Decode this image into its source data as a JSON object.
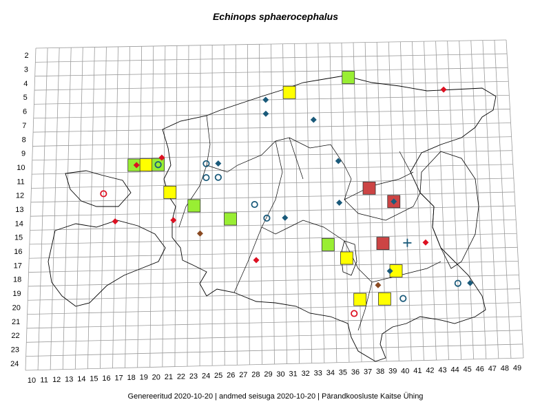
{
  "title": "Echinops sphaerocephalus",
  "footer": "Genereeritud 2020-10-20  |  andmed seisuga 2020-10-20  |  Pärandkoosluste Kaitse Ühing",
  "grid": {
    "rows": [
      "2",
      "3",
      "4",
      "5",
      "6",
      "7",
      "8",
      "9",
      "10",
      "11",
      "12",
      "13",
      "14",
      "15",
      "16",
      "17",
      "18",
      "19",
      "20",
      "21",
      "22",
      "23",
      "24"
    ],
    "cols": [
      "10",
      "11",
      "12",
      "13",
      "14",
      "15",
      "16",
      "17",
      "18",
      "19",
      "20",
      "21",
      "22",
      "23",
      "24",
      "25",
      "26",
      "27",
      "28",
      "29",
      "30",
      "31",
      "32",
      "33",
      "34",
      "35",
      "36",
      "37",
      "38",
      "39",
      "40",
      "41",
      "42",
      "43",
      "44",
      "45",
      "46",
      "47",
      "48",
      "49"
    ]
  },
  "colors": {
    "grid_line": "#9a9a9a",
    "border": "#000000",
    "yellow_square": "#ffff00",
    "green_square": "#99ee33",
    "red_square": "#cc4444",
    "red_marker": "#dd1122",
    "blue_marker": "#1a5a7a",
    "brown_marker": "#8a4a22"
  },
  "markers": [
    {
      "type": "square",
      "color": "green",
      "col": 18.0,
      "row": 10.0
    },
    {
      "type": "square",
      "color": "yellow",
      "col": 19.0,
      "row": 10.0
    },
    {
      "type": "square",
      "color": "green",
      "col": 20.0,
      "row": 10.0
    },
    {
      "type": "square",
      "color": "yellow",
      "col": 21.0,
      "row": 12.0
    },
    {
      "type": "square",
      "color": "green",
      "col": 23.0,
      "row": 13.0
    },
    {
      "type": "square",
      "color": "green",
      "col": 26.0,
      "row": 14.0
    },
    {
      "type": "square",
      "color": "yellow",
      "col": 31.0,
      "row": 5.0
    },
    {
      "type": "square",
      "color": "green",
      "col": 36.0,
      "row": 4.0
    },
    {
      "type": "square",
      "color": "red",
      "col": 37.5,
      "row": 12.0
    },
    {
      "type": "square",
      "color": "red",
      "col": 39.5,
      "row": 13.0
    },
    {
      "type": "square",
      "color": "red",
      "col": 38.5,
      "row": 16.0
    },
    {
      "type": "square",
      "color": "green",
      "col": 34.0,
      "row": 16.0
    },
    {
      "type": "square",
      "color": "yellow",
      "col": 35.5,
      "row": 17.0
    },
    {
      "type": "square",
      "color": "yellow",
      "col": 39.5,
      "row": 18.0
    },
    {
      "type": "square",
      "color": "yellow",
      "col": 36.5,
      "row": 20.0
    },
    {
      "type": "square",
      "color": "yellow",
      "col": 38.5,
      "row": 20.0
    },
    {
      "type": "diamond",
      "color": "red",
      "col": 18.2,
      "row": 10.0
    },
    {
      "type": "diamond",
      "color": "red",
      "col": 20.3,
      "row": 9.5
    },
    {
      "type": "diamond",
      "color": "red",
      "col": 16.5,
      "row": 14.0
    },
    {
      "type": "diamond",
      "color": "red",
      "col": 21.3,
      "row": 14.0
    },
    {
      "type": "diamond",
      "color": "red",
      "col": 28.1,
      "row": 17.0
    },
    {
      "type": "diamond",
      "color": "red",
      "col": 42.0,
      "row": 16.0
    },
    {
      "type": "diamond",
      "color": "red",
      "col": 44.0,
      "row": 5.0
    },
    {
      "type": "diamond",
      "color": "blue",
      "col": 29.0,
      "row": 5.5
    },
    {
      "type": "diamond",
      "color": "blue",
      "col": 29.0,
      "row": 6.5
    },
    {
      "type": "diamond",
      "color": "blue",
      "col": 33.0,
      "row": 7.0
    },
    {
      "type": "diamond",
      "color": "blue",
      "col": 25.0,
      "row": 10.0
    },
    {
      "type": "diamond",
      "color": "blue",
      "col": 35.0,
      "row": 10.0
    },
    {
      "type": "diamond",
      "color": "blue",
      "col": 35.0,
      "row": 13.0
    },
    {
      "type": "diamond",
      "color": "blue",
      "col": 30.5,
      "row": 14.0
    },
    {
      "type": "diamond",
      "color": "blue",
      "col": 39.5,
      "row": 13.0
    },
    {
      "type": "diamond",
      "color": "blue",
      "col": 39.0,
      "row": 18.0
    },
    {
      "type": "diamond",
      "color": "blue",
      "col": 45.5,
      "row": 19.0
    },
    {
      "type": "diamond",
      "color": "brown",
      "col": 23.5,
      "row": 15.0
    },
    {
      "type": "diamond",
      "color": "brown",
      "col": 38.0,
      "row": 19.0
    },
    {
      "type": "circle",
      "color": "red",
      "col": 15.5,
      "row": 12.0
    },
    {
      "type": "circle",
      "color": "red",
      "col": 36.0,
      "row": 21.0
    },
    {
      "type": "circle",
      "color": "blue",
      "col": 20.0,
      "row": 10.0
    },
    {
      "type": "circle",
      "color": "blue",
      "col": 24.0,
      "row": 10.0
    },
    {
      "type": "circle",
      "color": "blue",
      "col": 24.0,
      "row": 11.0
    },
    {
      "type": "circle",
      "color": "blue",
      "col": 25.0,
      "row": 11.0
    },
    {
      "type": "circle",
      "color": "blue",
      "col": 28.0,
      "row": 13.0
    },
    {
      "type": "circle",
      "color": "blue",
      "col": 29.0,
      "row": 14.0
    },
    {
      "type": "circle",
      "color": "blue",
      "col": 40.0,
      "row": 20.0
    },
    {
      "type": "circle",
      "color": "blue",
      "col": 44.5,
      "row": 19.0
    },
    {
      "type": "cross",
      "color": "blue",
      "col": 40.5,
      "row": 16.0
    }
  ]
}
